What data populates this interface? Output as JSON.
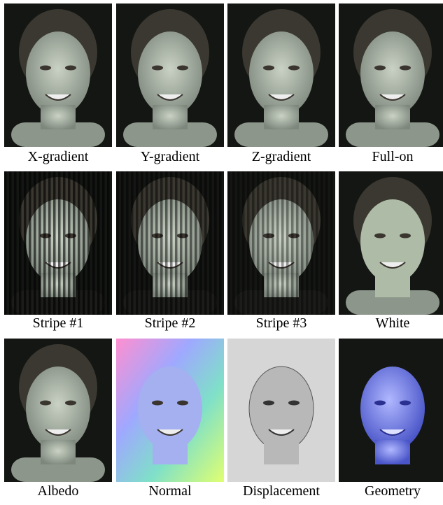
{
  "panels": [
    {
      "caption": "X-gradient"
    },
    {
      "caption": "Y-gradient"
    },
    {
      "caption": "Z-gradient"
    },
    {
      "caption": "Full-on"
    },
    {
      "caption": "Stripe #1"
    },
    {
      "caption": "Stripe #2"
    },
    {
      "caption": "Stripe #3"
    },
    {
      "caption": "White"
    },
    {
      "caption": "Albedo"
    },
    {
      "caption": "Normal"
    },
    {
      "caption": "Displacement"
    },
    {
      "caption": "Geometry"
    }
  ]
}
